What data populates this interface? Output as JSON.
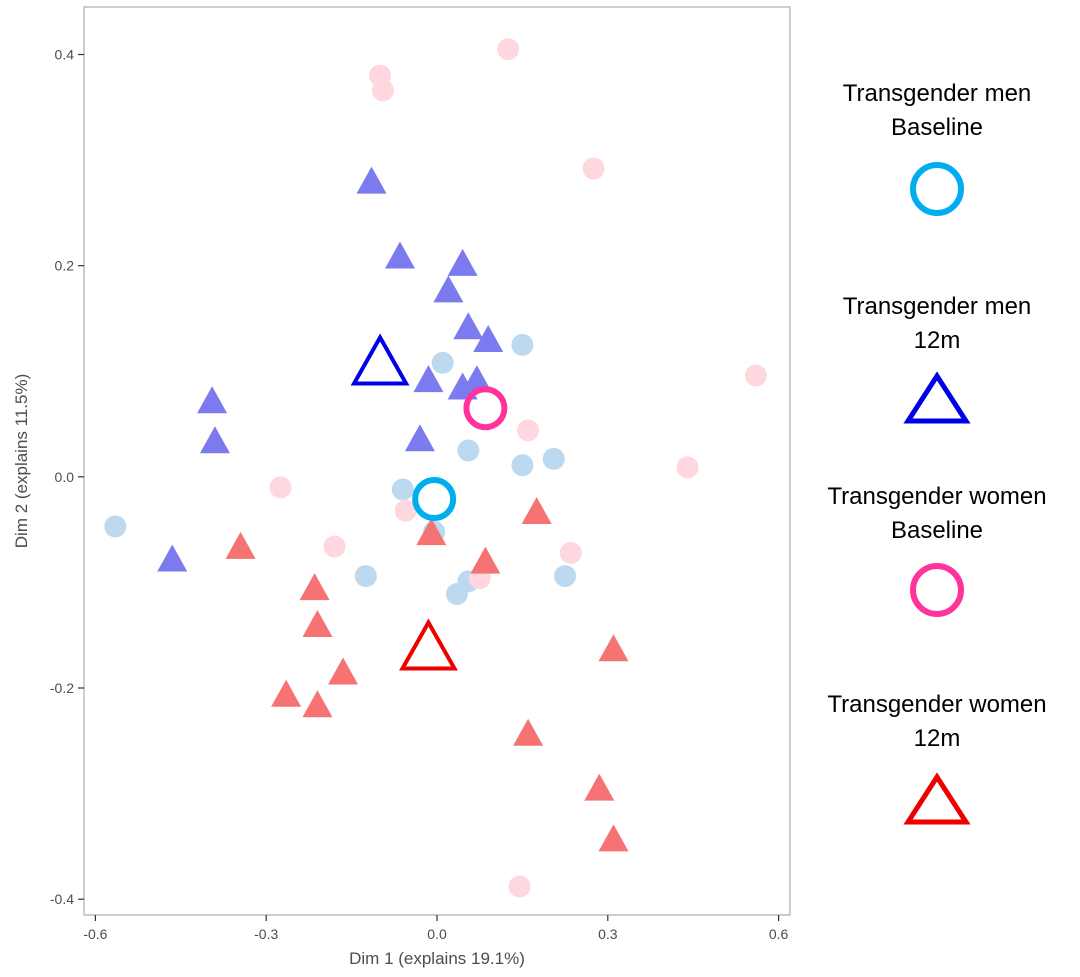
{
  "chart_data": {
    "type": "scatter",
    "xlabel": "Dim 1 (explains 19.1%)",
    "ylabel": "Dim 2 (explains 11.5%)",
    "xlim": [
      -0.62,
      0.62
    ],
    "ylim": [
      -0.415,
      0.445
    ],
    "xticks": [
      -0.6,
      -0.3,
      0.0,
      0.3,
      0.6
    ],
    "yticks": [
      -0.4,
      -0.2,
      0.0,
      0.2,
      0.4
    ],
    "xtick_labels": [
      "-0.6",
      "-0.3",
      "0.0",
      "0.3",
      "0.6"
    ],
    "ytick_labels": [
      "-0.4",
      "-0.2",
      "0.0",
      "0.2",
      "0.4"
    ],
    "grid": false,
    "legend_position": "right",
    "series": [
      {
        "name": "Transgender men Baseline",
        "marker": "circle",
        "color": "#BDD9F0",
        "centroid_color": "#00AEEF",
        "points": [
          [
            -0.565,
            -0.047
          ],
          [
            -0.125,
            -0.094
          ],
          [
            -0.06,
            -0.012
          ],
          [
            -0.005,
            -0.052
          ],
          [
            0.01,
            0.108
          ],
          [
            0.055,
            0.025
          ],
          [
            0.055,
            -0.099
          ],
          [
            0.035,
            -0.111
          ],
          [
            0.15,
            0.125
          ],
          [
            0.15,
            0.011
          ],
          [
            0.205,
            0.017
          ],
          [
            0.225,
            -0.094
          ]
        ],
        "centroid": [
          -0.005,
          -0.021
        ]
      },
      {
        "name": "Transgender men 12m",
        "marker": "triangle",
        "color": "#7B7BEF",
        "centroid_color": "#0000E6",
        "points": [
          [
            -0.115,
            0.278
          ],
          [
            -0.065,
            0.207
          ],
          [
            0.045,
            0.2
          ],
          [
            0.02,
            0.175
          ],
          [
            0.055,
            0.14
          ],
          [
            0.09,
            0.128
          ],
          [
            -0.015,
            0.09
          ],
          [
            0.045,
            0.083
          ],
          [
            0.07,
            0.09
          ],
          [
            -0.395,
            0.07
          ],
          [
            -0.39,
            0.032
          ],
          [
            -0.03,
            0.034
          ],
          [
            -0.465,
            -0.08
          ]
        ],
        "centroid": [
          -0.1,
          0.105
        ]
      },
      {
        "name": "Transgender women Baseline",
        "marker": "circle",
        "color": "#FFD7DE",
        "centroid_color": "#FF3399",
        "points": [
          [
            0.125,
            0.405
          ],
          [
            -0.1,
            0.38
          ],
          [
            -0.095,
            0.366
          ],
          [
            0.275,
            0.292
          ],
          [
            0.56,
            0.096
          ],
          [
            0.16,
            0.044
          ],
          [
            0.44,
            0.009
          ],
          [
            -0.275,
            -0.01
          ],
          [
            -0.055,
            -0.032
          ],
          [
            -0.18,
            -0.066
          ],
          [
            0.235,
            -0.072
          ],
          [
            0.075,
            -0.096
          ],
          [
            0.145,
            -0.388
          ]
        ],
        "centroid": [
          0.085,
          0.065
        ]
      },
      {
        "name": "Transgender women 12m",
        "marker": "triangle",
        "color": "#F57373",
        "centroid_color": "#EE0000",
        "points": [
          [
            0.175,
            -0.035
          ],
          [
            -0.01,
            -0.055
          ],
          [
            0.085,
            -0.082
          ],
          [
            -0.345,
            -0.068
          ],
          [
            -0.215,
            -0.107
          ],
          [
            -0.21,
            -0.142
          ],
          [
            -0.165,
            -0.187
          ],
          [
            -0.265,
            -0.208
          ],
          [
            -0.21,
            -0.218
          ],
          [
            0.31,
            -0.165
          ],
          [
            0.16,
            -0.245
          ],
          [
            0.285,
            -0.297
          ],
          [
            0.31,
            -0.345
          ]
        ],
        "centroid": [
          -0.015,
          -0.165
        ]
      }
    ]
  },
  "legend": [
    {
      "line1": "Transgender men",
      "line2": "Baseline",
      "symbol": "circle",
      "color": "#00AEEF"
    },
    {
      "line1": "Transgender men",
      "line2": "12m",
      "symbol": "triangle",
      "color": "#0000E6"
    },
    {
      "line1": "Transgender women",
      "line2": "Baseline",
      "symbol": "circle",
      "color": "#FF3399"
    },
    {
      "line1": "Transgender women",
      "line2": "12m",
      "symbol": "triangle",
      "color": "#EE0000"
    }
  ]
}
